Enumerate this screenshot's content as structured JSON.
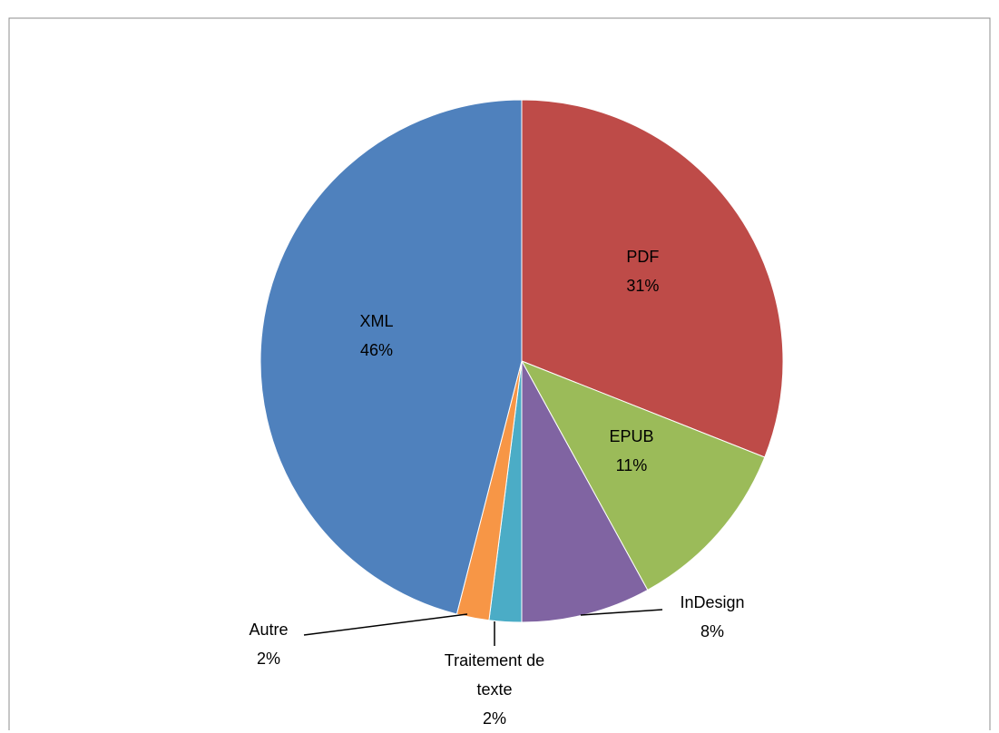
{
  "chart_data": {
    "type": "pie",
    "categories": [
      "PDF",
      "EPUB",
      "InDesign",
      "Traitement de texte",
      "Autre",
      "XML"
    ],
    "values": [
      31,
      11,
      8,
      2,
      2,
      46
    ],
    "value_labels": [
      "31%",
      "11%",
      "8%",
      "2%",
      "2%",
      "46%"
    ],
    "colors": [
      "#be4b48",
      "#9bbb59",
      "#8064a2",
      "#4bacc6",
      "#f79646",
      "#4f81bd"
    ]
  }
}
